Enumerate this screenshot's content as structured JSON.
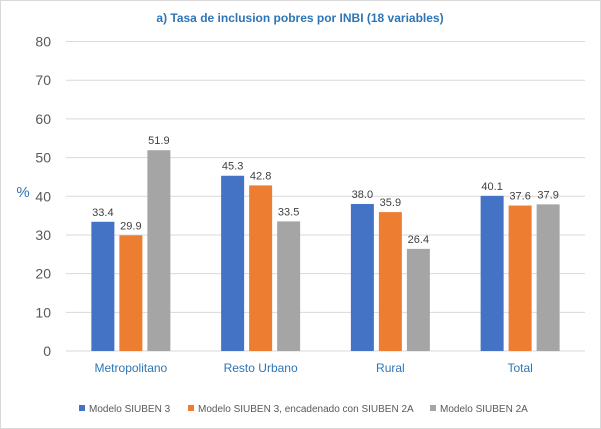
{
  "chart_data": {
    "type": "bar",
    "title": "a) Tasa de inclusion pobres por INBI (18 variables)",
    "xlabel": "",
    "ylabel": "%",
    "ylim": [
      0,
      80
    ],
    "yticks": [
      0,
      10,
      20,
      30,
      40,
      50,
      60,
      70,
      80
    ],
    "grid": true,
    "legend_position": "bottom",
    "categories": [
      "Metropolitano",
      "Resto Urbano",
      "Rural",
      "Total"
    ],
    "series": [
      {
        "name": "Modelo SIUBEN 3",
        "color": "#4472c4",
        "values": [
          33.4,
          45.3,
          38.0,
          40.1
        ],
        "labels": [
          "33.4",
          "45.3",
          "38.0",
          "40.1"
        ]
      },
      {
        "name": "Modelo SIUBEN 3, encadenado con SIUBEN 2A",
        "color": "#ed7d31",
        "values": [
          29.9,
          42.8,
          35.9,
          37.6
        ],
        "labels": [
          "29.9",
          "42.8",
          "35.9",
          "37.6"
        ]
      },
      {
        "name": "Modelo SIUBEN 2A",
        "color": "#a5a5a5",
        "values": [
          51.9,
          33.5,
          26.4,
          37.9
        ],
        "labels": [
          "51.9",
          "33.5",
          "26.4",
          "37.9"
        ]
      }
    ],
    "colors": {
      "title": "#2e75b6",
      "axis_text": "#595959",
      "category_text": "#2e75b6",
      "grid": "#d9d9d9",
      "label_text": "#404040"
    }
  }
}
